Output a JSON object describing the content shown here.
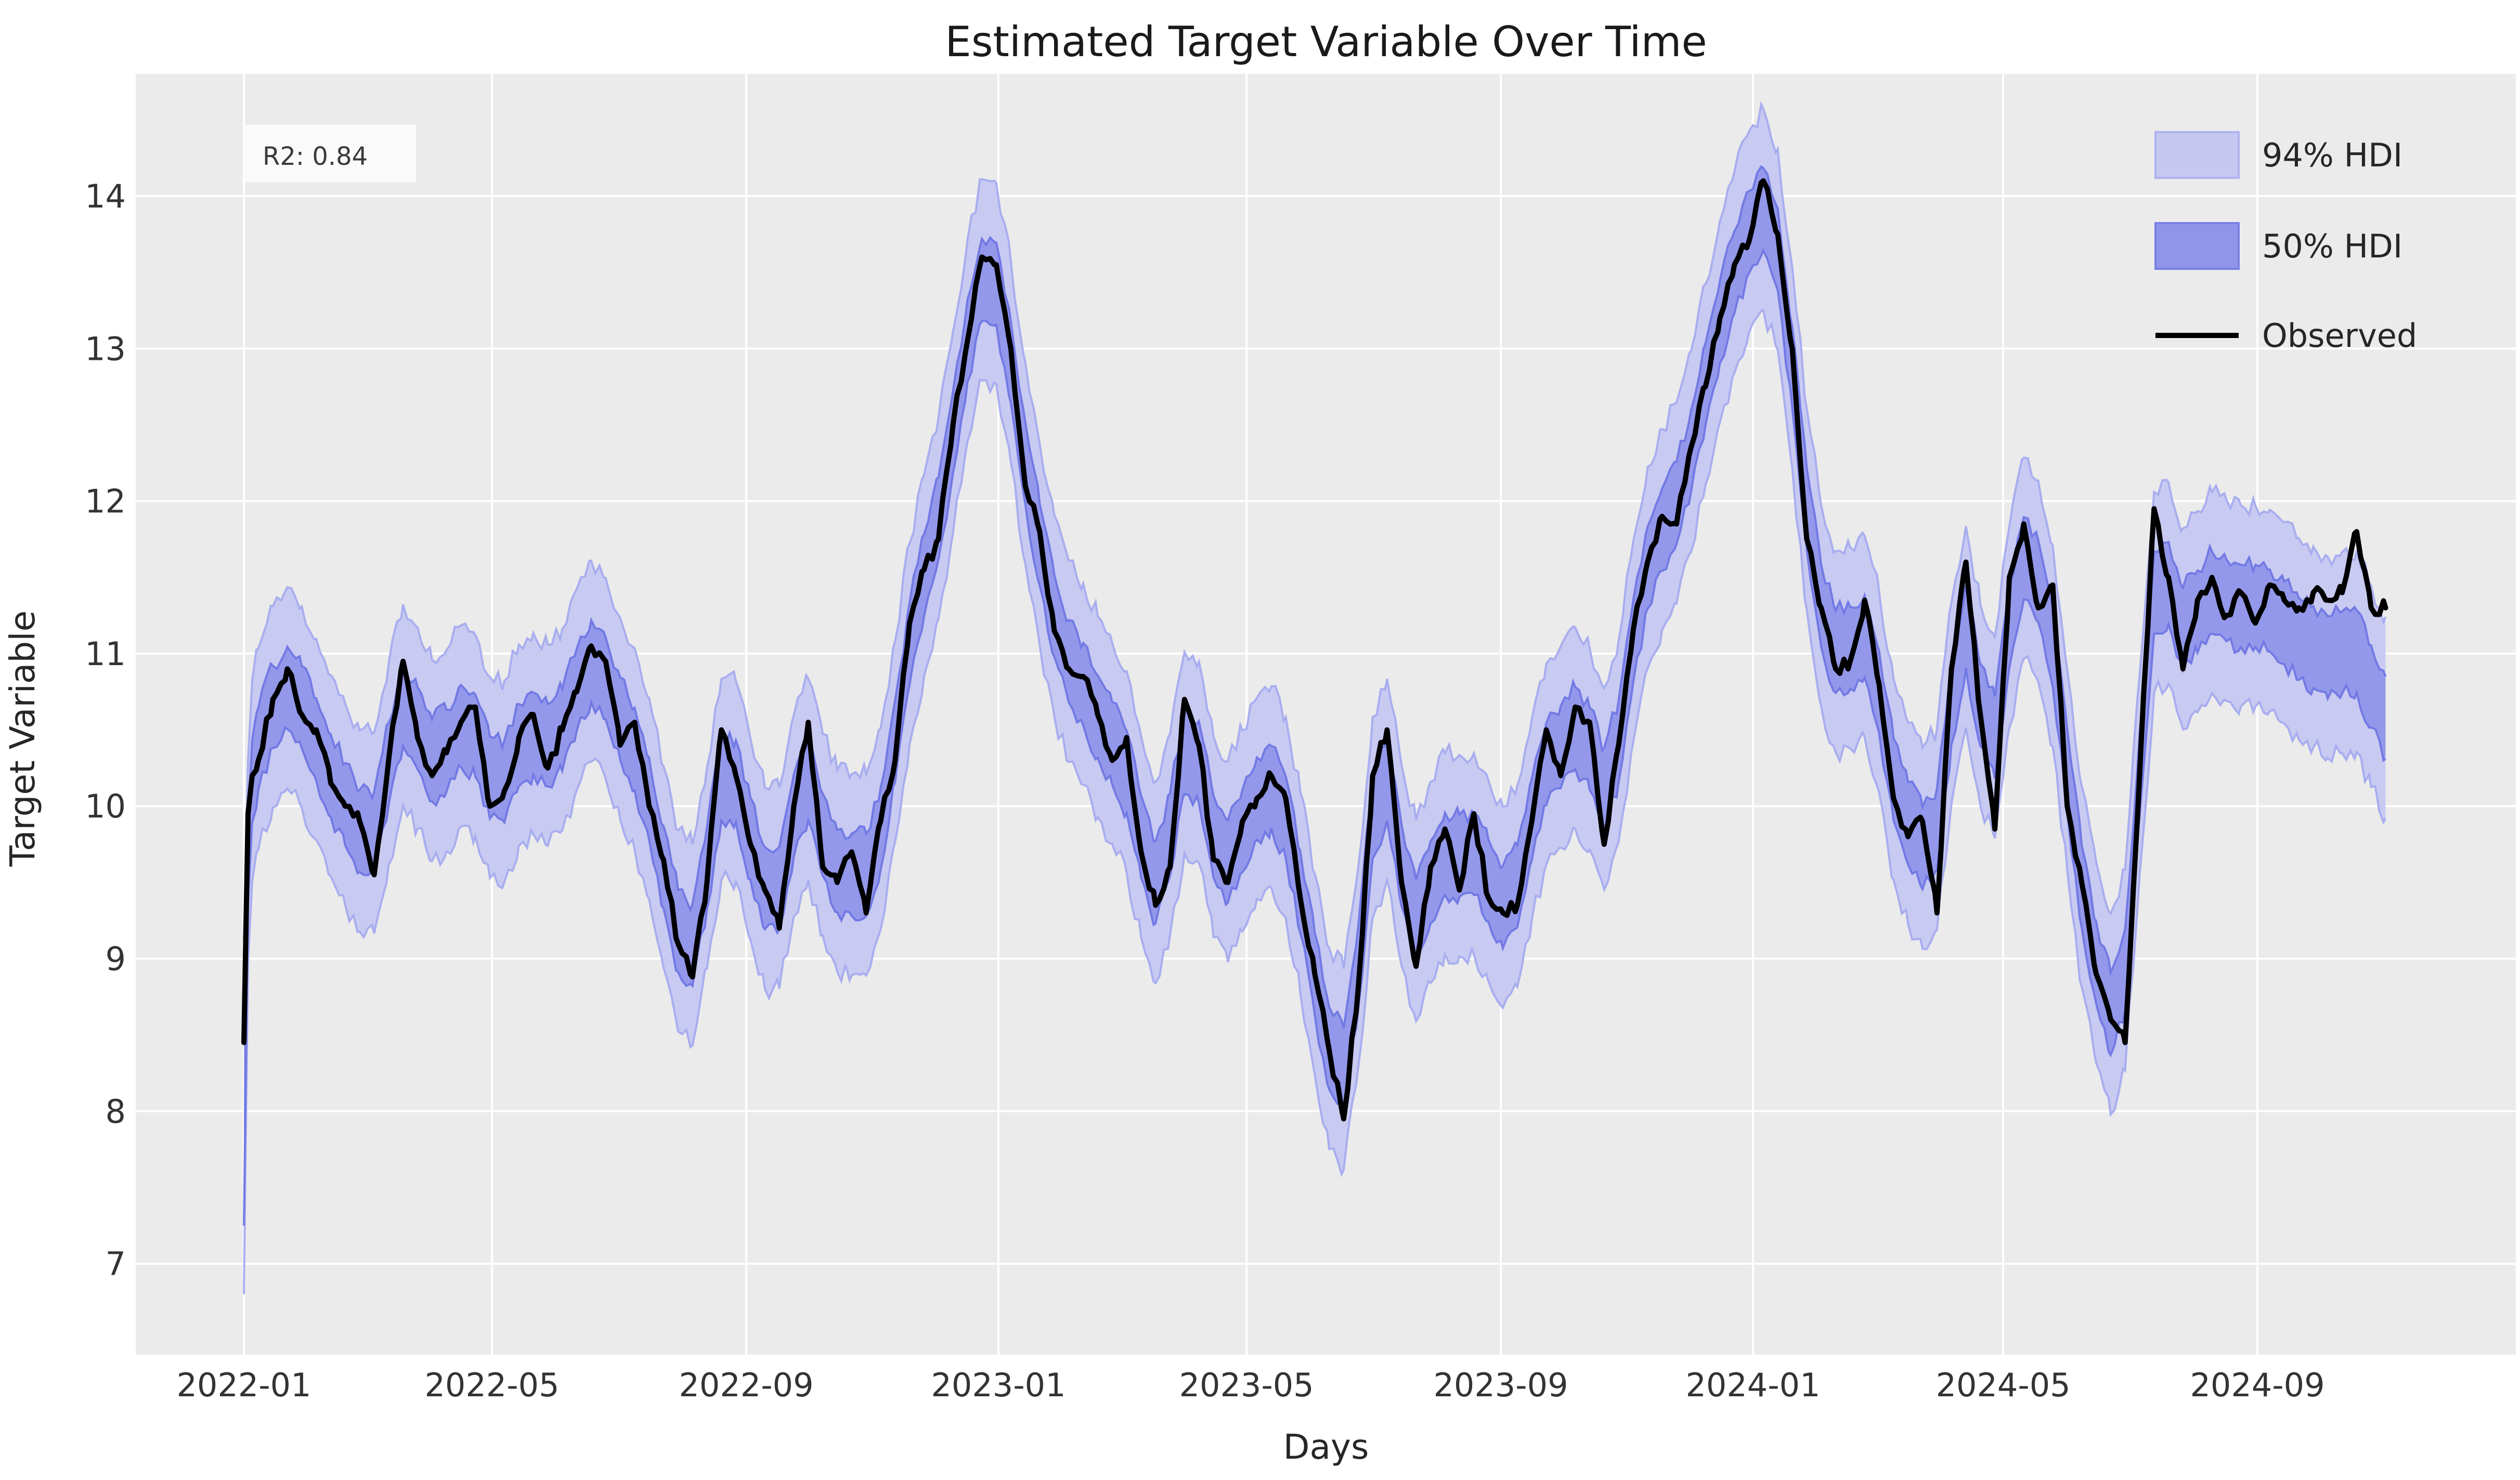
{
  "figure": {
    "title": "Estimated Target Variable Over Time",
    "xlabel": "Days",
    "ylabel": "Target Variable",
    "annotation": "R2: 0.84"
  },
  "legend": [
    {
      "label": "94% HDI",
      "type": "patch",
      "fill": "#c6c8f1",
      "edge": "#aeb2f0"
    },
    {
      "label": "50% HDI",
      "type": "patch",
      "fill": "#9095e9",
      "edge": "#7a80e6"
    },
    {
      "label": "Observed",
      "type": "line",
      "color": "#000000"
    }
  ],
  "colors": {
    "figure_background": "#ffffff",
    "plot_background": "#ebebeb",
    "gridline": "#ffffff",
    "observed_line": "#000000",
    "hdi94_fill": "#c6c8f1",
    "hdi94_edge": "#a3a8ef",
    "hdi50_fill": "#9095e9",
    "hdi50_edge": "#6c73e3",
    "annotation_box": "#fafafa"
  },
  "chart_data": {
    "type": "line",
    "title": "Estimated Target Variable Over Time",
    "xlabel": "Days",
    "ylabel": "Target Variable",
    "legend_position": "upper right",
    "grid": true,
    "r2_annotation": "R2: 0.84",
    "x_ticks": [
      "2022-01",
      "2022-05",
      "2022-09",
      "2023-01",
      "2023-05",
      "2023-09",
      "2024-01",
      "2024-05",
      "2024-09"
    ],
    "y_ticks": [
      7,
      8,
      9,
      10,
      11,
      12,
      13,
      14
    ],
    "ylim": [
      6.4,
      14.8
    ],
    "xlim_dates": [
      "2021-11-09",
      "2025-01-03"
    ],
    "x_dates": [
      "2022-01-01",
      "2022-01-03",
      "2022-01-05",
      "2022-01-08",
      "2022-01-15",
      "2022-01-22",
      "2022-01-29",
      "2022-02-05",
      "2022-02-12",
      "2022-02-19",
      "2022-02-26",
      "2022-03-05",
      "2022-03-12",
      "2022-03-19",
      "2022-03-26",
      "2022-04-02",
      "2022-04-09",
      "2022-04-16",
      "2022-04-23",
      "2022-04-30",
      "2022-05-07",
      "2022-05-14",
      "2022-05-21",
      "2022-05-28",
      "2022-06-04",
      "2022-06-11",
      "2022-06-18",
      "2022-06-25",
      "2022-07-02",
      "2022-07-09",
      "2022-07-16",
      "2022-07-23",
      "2022-07-30",
      "2022-08-06",
      "2022-08-13",
      "2022-08-20",
      "2022-08-27",
      "2022-09-03",
      "2022-09-10",
      "2022-09-17",
      "2022-09-24",
      "2022-10-01",
      "2022-10-08",
      "2022-10-15",
      "2022-10-22",
      "2022-10-29",
      "2022-11-05",
      "2022-11-12",
      "2022-11-19",
      "2022-11-26",
      "2022-12-03",
      "2022-12-10",
      "2022-12-17",
      "2022-12-24",
      "2022-12-31",
      "2023-01-07",
      "2023-01-14",
      "2023-01-21",
      "2023-01-28",
      "2023-02-04",
      "2023-02-11",
      "2023-02-18",
      "2023-02-25",
      "2023-03-04",
      "2023-03-11",
      "2023-03-18",
      "2023-03-25",
      "2023-04-01",
      "2023-04-08",
      "2023-04-15",
      "2023-04-22",
      "2023-04-29",
      "2023-05-06",
      "2023-05-13",
      "2023-05-20",
      "2023-05-27",
      "2023-06-03",
      "2023-06-10",
      "2023-06-17",
      "2023-06-24",
      "2023-07-01",
      "2023-07-08",
      "2023-07-15",
      "2023-07-22",
      "2023-07-29",
      "2023-08-05",
      "2023-08-12",
      "2023-08-19",
      "2023-08-26",
      "2023-09-02",
      "2023-09-09",
      "2023-09-16",
      "2023-09-23",
      "2023-09-30",
      "2023-10-07",
      "2023-10-14",
      "2023-10-21",
      "2023-10-28",
      "2023-11-04",
      "2023-11-11",
      "2023-11-18",
      "2023-11-25",
      "2023-12-02",
      "2023-12-09",
      "2023-12-16",
      "2023-12-23",
      "2023-12-30",
      "2024-01-06",
      "2024-01-13",
      "2024-01-20",
      "2024-01-27",
      "2024-02-03",
      "2024-02-10",
      "2024-02-17",
      "2024-02-24",
      "2024-03-02",
      "2024-03-09",
      "2024-03-16",
      "2024-03-23",
      "2024-03-30",
      "2024-04-06",
      "2024-04-13",
      "2024-04-20",
      "2024-04-27",
      "2024-05-04",
      "2024-05-11",
      "2024-05-18",
      "2024-05-25",
      "2024-06-01",
      "2024-06-08",
      "2024-06-15",
      "2024-06-22",
      "2024-06-29",
      "2024-07-06",
      "2024-07-13",
      "2024-07-20",
      "2024-07-27",
      "2024-08-03",
      "2024-08-10",
      "2024-08-17",
      "2024-08-24",
      "2024-08-31",
      "2024-09-07",
      "2024-09-14",
      "2024-09-21",
      "2024-09-28",
      "2024-10-05",
      "2024-10-12",
      "2024-10-19",
      "2024-10-26",
      "2024-11-02"
    ],
    "series": [
      {
        "name": "Observed",
        "values": [
          8.45,
          9.95,
          10.2,
          10.3,
          10.7,
          10.9,
          10.6,
          10.5,
          10.15,
          10.0,
          9.9,
          9.55,
          10.3,
          10.95,
          10.45,
          10.2,
          10.35,
          10.55,
          10.65,
          10.0,
          10.1,
          10.45,
          10.6,
          10.25,
          10.5,
          10.75,
          11.05,
          10.95,
          10.4,
          10.55,
          10.0,
          9.65,
          9.1,
          8.88,
          9.5,
          10.5,
          10.2,
          9.75,
          9.45,
          9.2,
          10.0,
          10.55,
          9.6,
          9.5,
          9.7,
          9.3,
          9.9,
          10.3,
          11.2,
          11.55,
          11.75,
          12.5,
          13.05,
          13.6,
          13.55,
          13.0,
          12.1,
          11.8,
          11.15,
          10.9,
          10.85,
          10.6,
          10.3,
          10.45,
          9.7,
          9.35,
          9.6,
          10.7,
          10.4,
          9.65,
          9.5,
          9.9,
          10.05,
          10.2,
          10.05,
          9.4,
          8.9,
          8.4,
          7.95,
          8.8,
          10.2,
          10.5,
          9.5,
          8.95,
          9.6,
          9.85,
          9.45,
          9.95,
          9.4,
          9.3,
          9.35,
          9.9,
          10.5,
          10.2,
          10.65,
          10.55,
          9.75,
          10.4,
          11.15,
          11.6,
          11.9,
          11.85,
          12.35,
          12.75,
          13.2,
          13.55,
          13.7,
          14.1,
          13.75,
          13.0,
          11.75,
          11.3,
          10.9,
          10.95,
          11.35,
          10.8,
          10.05,
          9.8,
          9.9,
          9.3,
          10.9,
          11.6,
          10.6,
          9.85,
          11.5,
          11.85,
          11.3,
          11.45,
          10.0,
          9.5,
          8.9,
          8.6,
          8.45,
          10.2,
          11.95,
          11.5,
          10.9,
          11.35,
          11.5,
          11.25,
          11.4,
          11.2,
          11.45,
          11.35,
          11.3,
          11.4,
          11.35,
          11.4,
          11.8,
          11.3,
          11.3
        ]
      }
    ],
    "hdi_bands": {
      "center": "smoothed_observed",
      "hdi94": {
        "label": "94% HDI",
        "halfwidth": 0.66
      },
      "hdi50": {
        "label": "50% HDI",
        "halfwidth": 0.27
      },
      "start_spike": {
        "date": "2022-01-01",
        "hdi94_low": 6.8,
        "hdi50_low": 7.25
      },
      "end_deviation": {
        "start_date": "2024-08-31",
        "end_date": "2024-11-02",
        "center_shift": -0.72
      }
    }
  }
}
